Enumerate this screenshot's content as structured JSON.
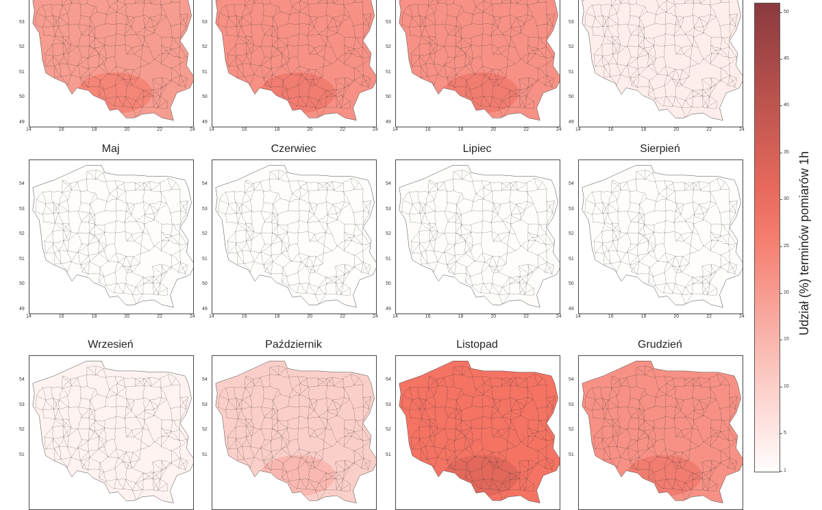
{
  "map": {
    "panels": [
      {
        "title": "",
        "value": 20
      },
      {
        "title": "",
        "value": 22
      },
      {
        "title": "",
        "value": 22
      },
      {
        "title": "",
        "value": 4
      },
      {
        "title": "Maj",
        "value": 0.5
      },
      {
        "title": "Czerwiec",
        "value": 0
      },
      {
        "title": "Lipiec",
        "value": 0
      },
      {
        "title": "Sierpień",
        "value": 0
      },
      {
        "title": "Wrzesień",
        "value": 3
      },
      {
        "title": "Październik",
        "value": 10
      },
      {
        "title": "Listopad",
        "value": 28
      },
      {
        "title": "Grudzień",
        "value": 22
      }
    ],
    "x_ticks": [
      "14",
      "16",
      "18",
      "20",
      "22",
      "24"
    ],
    "y_ticks": [
      "49",
      "50",
      "51",
      "52",
      "53",
      "54"
    ],
    "colorbar": {
      "label": "Udział (%) terminów pomiarów 1h",
      "ticks": [
        "1",
        "5",
        "10",
        "15",
        "20",
        "25",
        "30",
        "35",
        "40",
        "45",
        "50"
      ],
      "min": 1,
      "max": 51,
      "color_low": "#fffdfc",
      "color_high": "#8b3a3e"
    }
  }
}
